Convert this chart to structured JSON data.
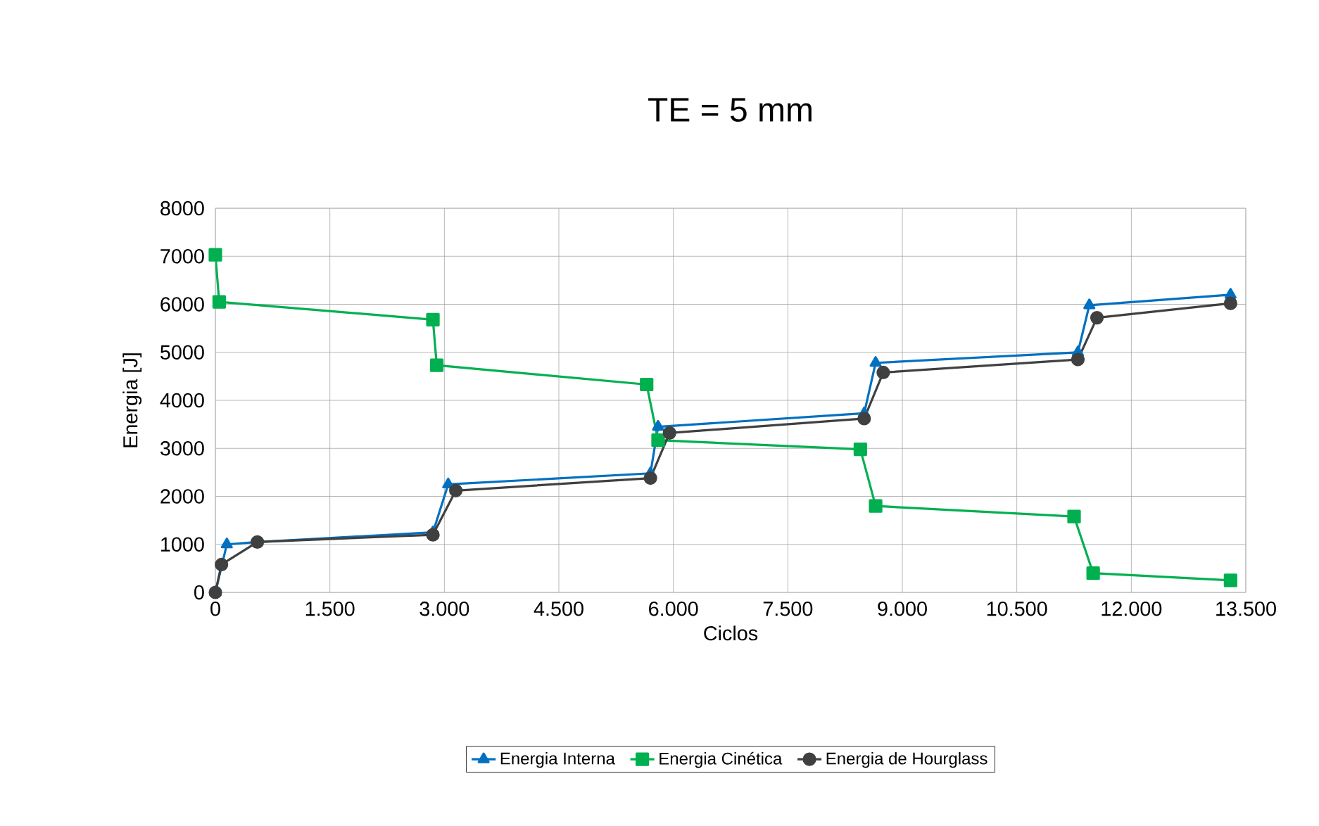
{
  "chart_data": {
    "type": "line",
    "title": "TE = 5 mm",
    "xlabel": "Ciclos",
    "ylabel": "Energia [J]",
    "xlim": [
      0,
      13500
    ],
    "ylim": [
      0,
      8000
    ],
    "xticks": [
      {
        "value": 0,
        "label": "0"
      },
      {
        "value": 1500,
        "label": "1.500"
      },
      {
        "value": 3000,
        "label": "3.000"
      },
      {
        "value": 4500,
        "label": "4.500"
      },
      {
        "value": 6000,
        "label": "6.000"
      },
      {
        "value": 7500,
        "label": "7.500"
      },
      {
        "value": 9000,
        "label": "9.000"
      },
      {
        "value": 10500,
        "label": "10.500"
      },
      {
        "value": 12000,
        "label": "12.000"
      },
      {
        "value": 13500,
        "label": "13.500"
      }
    ],
    "yticks": [
      0,
      1000,
      2000,
      3000,
      4000,
      5000,
      6000,
      7000,
      8000
    ],
    "grid": true,
    "legend": "bottom",
    "line_style": "solid",
    "series": [
      {
        "name": "Energia Interna",
        "color": "#0070c0",
        "marker": "triangle",
        "x": [
          0,
          150,
          550,
          2850,
          3050,
          5700,
          5800,
          8500,
          8650,
          11300,
          11450,
          13300
        ],
        "values": [
          0,
          1000,
          1050,
          1250,
          2250,
          2480,
          3450,
          3730,
          4780,
          5000,
          5980,
          6200
        ]
      },
      {
        "name": "Energia Cinética",
        "color": "#00b050",
        "marker": "square",
        "x": [
          0,
          50,
          2850,
          2900,
          5650,
          5800,
          8450,
          8650,
          11250,
          11500,
          13300
        ],
        "values": [
          7030,
          6050,
          5680,
          4730,
          4330,
          3170,
          2980,
          1800,
          1580,
          400,
          250
        ]
      },
      {
        "name": "Energia de Hourglass",
        "color": "#404040",
        "marker": "circle",
        "x": [
          0,
          80,
          550,
          2850,
          3150,
          5700,
          5950,
          8500,
          8750,
          11300,
          11550,
          13300
        ],
        "values": [
          0,
          580,
          1050,
          1200,
          2120,
          2380,
          3320,
          3620,
          4580,
          4850,
          5720,
          6020
        ]
      }
    ]
  }
}
